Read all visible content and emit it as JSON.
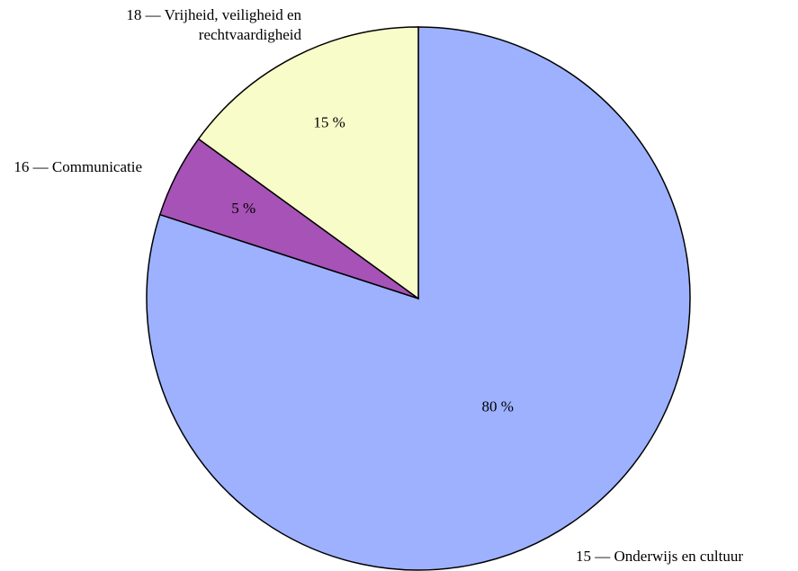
{
  "chart_data": {
    "type": "pie",
    "categories": [
      "15 — Onderwijs en cultuur",
      "16 — Communicatie",
      "18 — Vrijheid, veiligheid en rechtvaardigheid"
    ],
    "values": [
      80,
      5,
      15
    ],
    "value_labels": [
      "80 %",
      "5 %",
      "15 %"
    ],
    "colors": [
      "#9db1ff",
      "#a652b6",
      "#f8fcc9"
    ]
  }
}
